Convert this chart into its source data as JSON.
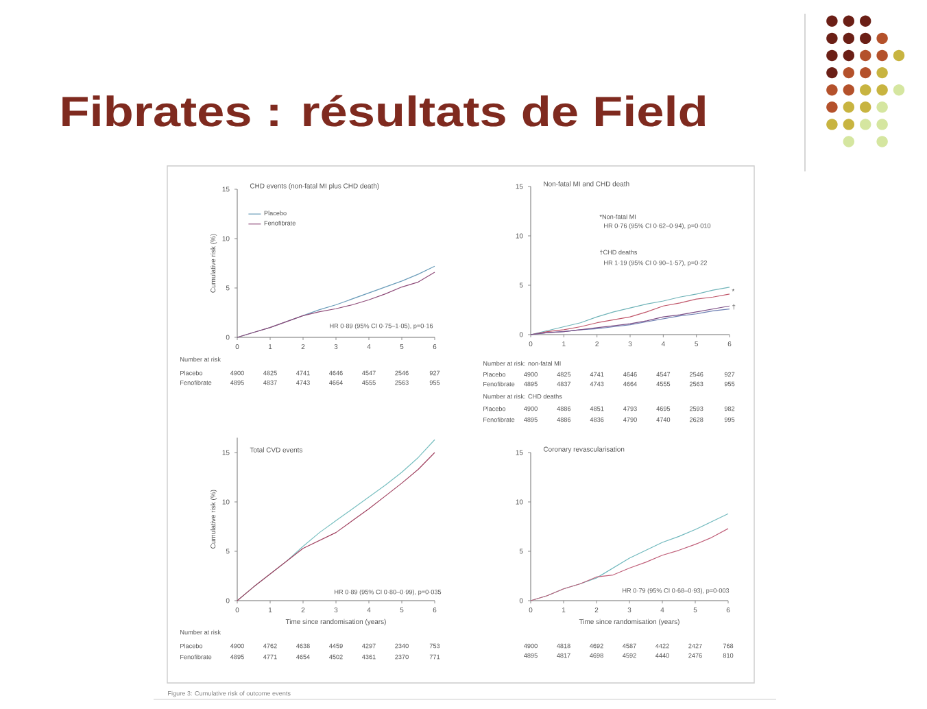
{
  "chart_data": [
    {
      "type": "other",
      "title": "Fibrates : résultats de Field",
      "annotations": [
        "Figure 3: Cumulative risk of outcome events"
      ]
    },
    {
      "type": "line",
      "title": "CHD events (non-fatal MI plus CHD death)",
      "ylabel": "Cumulative risk (%)",
      "x": [
        0,
        0.5,
        1,
        1.5,
        2,
        2.5,
        3,
        3.5,
        4,
        4.5,
        5,
        5.5,
        6
      ],
      "series": [
        {
          "name": "Placebo",
          "color": "#6b9dba",
          "values": [
            0,
            0.5,
            1.0,
            1.6,
            2.2,
            2.8,
            3.3,
            3.9,
            4.5,
            5.1,
            5.7,
            6.4,
            7.2
          ]
        },
        {
          "name": "Fenofibrate",
          "color": "#8e4a78",
          "values": [
            0,
            0.5,
            1.0,
            1.6,
            2.2,
            2.6,
            2.9,
            3.3,
            3.8,
            4.4,
            5.1,
            5.6,
            6.6
          ]
        }
      ],
      "xlim": [
        0,
        6
      ],
      "ylim": [
        0,
        15
      ],
      "xticks": [
        0,
        1,
        2,
        3,
        4,
        5,
        6
      ],
      "yticks": [
        0,
        5,
        10,
        15
      ],
      "legend": "top left",
      "annotations": [
        "HR 0·89 (95% CI 0·75–1·05), p=0·16",
        "Number at risk",
        "Placebo",
        "4900",
        "4825",
        "4741",
        "4646",
        "4547",
        "2546",
        "927",
        "Fenofibrate",
        "4895",
        "4837",
        "4743",
        "4664",
        "4555",
        "2563",
        "955"
      ]
    },
    {
      "type": "line",
      "title": "Non-fatal MI and CHD death",
      "x": [
        0,
        0.5,
        1,
        1.5,
        2,
        2.5,
        3,
        3.5,
        4,
        4.5,
        5,
        5.5,
        6
      ],
      "series": [
        {
          "color": "#6fb3b8",
          "values": [
            0,
            0.4,
            0.8,
            1.2,
            1.8,
            2.3,
            2.7,
            3.1,
            3.4,
            3.8,
            4.1,
            4.5,
            4.8
          ]
        },
        {
          "color": "#c0566a",
          "values": [
            0,
            0.3,
            0.5,
            0.8,
            1.2,
            1.5,
            1.8,
            2.3,
            2.9,
            3.2,
            3.6,
            3.8,
            4.1
          ]
        },
        {
          "color": "#6d7fb3",
          "values": [
            0,
            0.2,
            0.3,
            0.5,
            0.6,
            0.8,
            1.0,
            1.3,
            1.6,
            1.9,
            2.1,
            2.4,
            2.6
          ]
        },
        {
          "color": "#7d4f86",
          "values": [
            0,
            0.2,
            0.3,
            0.5,
            0.7,
            0.9,
            1.1,
            1.4,
            1.8,
            2.0,
            2.3,
            2.6,
            2.9
          ]
        }
      ],
      "xlim": [
        0,
        6
      ],
      "ylim": [
        0,
        15
      ],
      "xticks": [
        0,
        1,
        2,
        3,
        4,
        5,
        6
      ],
      "yticks": [
        0,
        5,
        10,
        15
      ],
      "annotations": [
        "*Non-fatal MI",
        "HR 0·76 (95% CI 0·62–0·94), p=0·010",
        "†CHD deaths",
        "HR 1·19 (95% CI 0·90–1·57), p=0·22",
        {
          "text": "*",
          "x": 6,
          "y": 4.4
        },
        {
          "text": "†",
          "x": 6,
          "y": 2.8
        },
        "Number at risk: non-fatal MI",
        "Placebo",
        "4900",
        "4825",
        "4741",
        "4646",
        "4547",
        "2546",
        "927",
        "Fenofibrate",
        "4895",
        "4837",
        "4743",
        "4664",
        "4555",
        "2563",
        "955",
        "Number at risk: CHD deaths",
        "Placebo",
        "4900",
        "4886",
        "4851",
        "4793",
        "4695",
        "2593",
        "982",
        "Fenofibrate",
        "4895",
        "4886",
        "4836",
        "4790",
        "4740",
        "2628",
        "995"
      ]
    },
    {
      "type": "line",
      "title": "Total CVD events",
      "xlabel": "Time since randomisation (years)",
      "ylabel": "Cumulative risk (%)",
      "x": [
        0,
        0.5,
        1,
        1.5,
        2,
        2.5,
        3,
        3.5,
        4,
        4.5,
        5,
        5.5,
        6
      ],
      "series": [
        {
          "color": "#78bfc0",
          "values": [
            0,
            1.4,
            2.7,
            4.0,
            5.5,
            6.9,
            8.1,
            9.3,
            10.5,
            11.7,
            13.0,
            14.5,
            16.3
          ]
        },
        {
          "color": "#a0405f",
          "values": [
            0,
            1.4,
            2.7,
            4.0,
            5.3,
            6.1,
            6.9,
            8.1,
            9.3,
            10.6,
            11.9,
            13.3,
            15.0
          ]
        }
      ],
      "xlim": [
        0,
        6
      ],
      "ylim": [
        0,
        16.5
      ],
      "xticks": [
        0,
        1,
        2,
        3,
        4,
        5,
        6
      ],
      "yticks": [
        0,
        5,
        10,
        15
      ],
      "annotations": [
        "HR 0·89 (95% CI 0·80–0·99), p=0·035",
        "Number at risk",
        "Placebo",
        "4900",
        "4762",
        "4638",
        "4459",
        "4297",
        "2340",
        "753",
        "Fenofibrate",
        "4895",
        "4771",
        "4654",
        "4502",
        "4361",
        "2370",
        "771"
      ]
    },
    {
      "type": "line",
      "title": "Coronary revascularisation",
      "xlabel": "Time since randomisation (years)",
      "x": [
        0,
        0.5,
        1,
        1.5,
        2,
        2.5,
        3,
        3.5,
        4,
        4.5,
        5,
        5.5,
        6
      ],
      "series": [
        {
          "color": "#6fb8bd",
          "values": [
            0,
            0.5,
            1.2,
            1.7,
            2.3,
            3.3,
            4.3,
            5.1,
            5.9,
            6.5,
            7.2,
            8.0,
            8.8
          ]
        },
        {
          "color": "#c0607a",
          "values": [
            0,
            0.5,
            1.2,
            1.7,
            2.4,
            2.6,
            3.3,
            3.9,
            4.6,
            5.1,
            5.7,
            6.4,
            7.3
          ]
        }
      ],
      "xlim": [
        0,
        6
      ],
      "ylim": [
        0,
        15
      ],
      "xticks": [
        0,
        1,
        2,
        3,
        4,
        5,
        6
      ],
      "yticks": [
        0,
        5,
        10,
        15
      ],
      "annotations": [
        "HR 0·79 (95% CI 0·68–0·93), p=0·003",
        "4900",
        "4818",
        "4692",
        "4587",
        "4422",
        "2427",
        "768",
        "4895",
        "4817",
        "4698",
        "4592",
        "4440",
        "2476",
        "810"
      ]
    }
  ]
}
